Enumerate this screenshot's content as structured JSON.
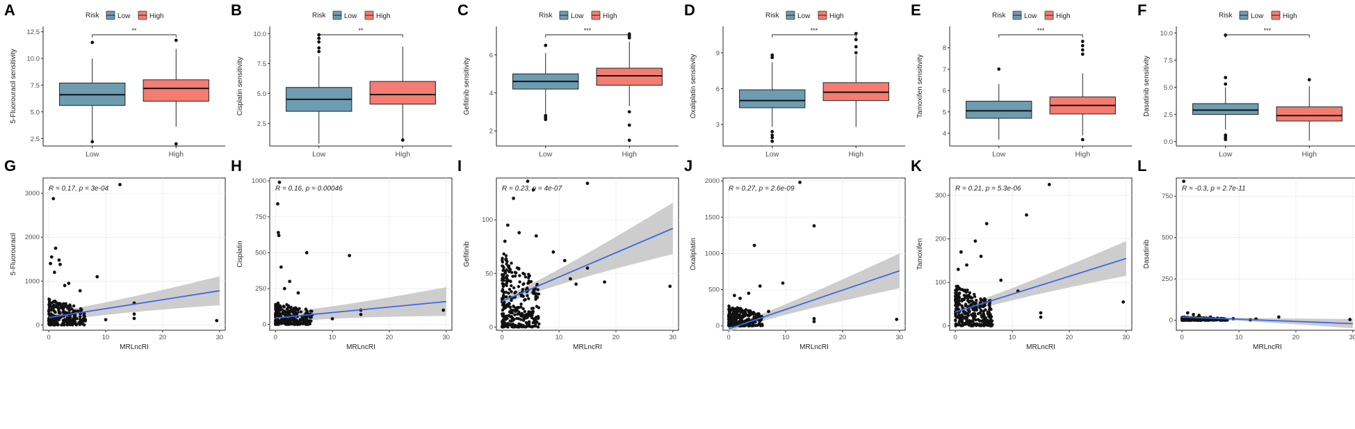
{
  "colors": {
    "low": "#6e9cb0",
    "high": "#f47c70",
    "fit": "#3b67e6",
    "ci": "#c4c4c4"
  },
  "chart_data": [
    {
      "type": "box",
      "letter": "A",
      "title": "",
      "ylabel": "5-Fluorouracil sensitivity",
      "xlabel": "",
      "categories": [
        "Low",
        "High"
      ],
      "legend_title": "Risk",
      "legend_labels": [
        "Low",
        "High"
      ],
      "sig": "**",
      "ylim": [
        1.8,
        13
      ],
      "yticks": [
        "2.5",
        "5.0",
        "7.5",
        "10.0",
        "12.5"
      ],
      "boxes": [
        {
          "name": "Low",
          "min": 2.3,
          "q1": 5.6,
          "median": 6.6,
          "q3": 7.7,
          "max": 10.0,
          "outliers": [
            2.2,
            11.5
          ]
        },
        {
          "name": "High",
          "min": 3.6,
          "q1": 6.0,
          "median": 7.2,
          "q3": 8.0,
          "max": 10.9,
          "outliers": [
            2.0,
            11.7
          ]
        }
      ]
    },
    {
      "type": "box",
      "letter": "B",
      "title": "",
      "ylabel": "Cisplatin sensitivity",
      "xlabel": "",
      "categories": [
        "Low",
        "High"
      ],
      "legend_title": "Risk",
      "legend_labels": [
        "Low",
        "High"
      ],
      "sig": "**",
      "ylim": [
        0.6,
        10.6
      ],
      "yticks": [
        "2.5",
        "5.0",
        "7.5",
        "10.0"
      ],
      "boxes": [
        {
          "name": "Low",
          "min": 0.8,
          "q1": 3.5,
          "median": 4.5,
          "q3": 5.5,
          "max": 8.1,
          "outliers": [
            8.5,
            8.8,
            9.3,
            9.6,
            9.9
          ]
        },
        {
          "name": "High",
          "min": 1.1,
          "q1": 4.1,
          "median": 4.9,
          "q3": 6.0,
          "max": 8.9,
          "outliers": [
            1.1
          ]
        }
      ]
    },
    {
      "type": "box",
      "letter": "C",
      "title": "",
      "ylabel": "Gefitinib sensitivity",
      "xlabel": "",
      "categories": [
        "Low",
        "High"
      ],
      "legend_title": "Risk",
      "legend_labels": [
        "Low",
        "High"
      ],
      "sig": "***",
      "ylim": [
        1.2,
        7.5
      ],
      "yticks": [
        "2",
        "4",
        "6"
      ],
      "boxes": [
        {
          "name": "Low",
          "min": 2.9,
          "q1": 4.2,
          "median": 4.6,
          "q3": 5.0,
          "max": 6.1,
          "outliers": [
            2.6,
            2.7,
            2.8,
            6.5
          ]
        },
        {
          "name": "High",
          "min": 3.3,
          "q1": 4.4,
          "median": 4.9,
          "q3": 5.3,
          "max": 6.7,
          "outliers": [
            1.5,
            2.3,
            3.0,
            6.9,
            7.0,
            7.1
          ]
        }
      ]
    },
    {
      "type": "box",
      "letter": "D",
      "title": "",
      "ylabel": "Oxaliplatin sensitivity",
      "xlabel": "",
      "categories": [
        "Low",
        "High"
      ],
      "legend_title": "Risk",
      "legend_labels": [
        "Low",
        "High"
      ],
      "sig": "***",
      "ylim": [
        1.2,
        11.2
      ],
      "yticks": [
        "3",
        "6",
        "9"
      ],
      "boxes": [
        {
          "name": "Low",
          "min": 2.8,
          "q1": 4.4,
          "median": 5.0,
          "q3": 5.9,
          "max": 8.2,
          "outliers": [
            1.6,
            1.9,
            2.1,
            2.4,
            8.6,
            8.8
          ]
        },
        {
          "name": "High",
          "min": 2.8,
          "q1": 5.0,
          "median": 5.7,
          "q3": 6.5,
          "max": 8.8,
          "outliers": [
            9.0,
            9.5,
            10.1,
            10.6
          ]
        }
      ]
    },
    {
      "type": "box",
      "letter": "E",
      "title": "",
      "ylabel": "Tamoxifen sensitivity",
      "xlabel": "",
      "categories": [
        "Low",
        "High"
      ],
      "legend_title": "Risk",
      "legend_labels": [
        "Low",
        "High"
      ],
      "sig": "***",
      "ylim": [
        3.4,
        9.0
      ],
      "yticks": [
        "4",
        "5",
        "6",
        "7",
        "8"
      ],
      "boxes": [
        {
          "name": "Low",
          "min": 3.7,
          "q1": 4.7,
          "median": 5.05,
          "q3": 5.5,
          "max": 6.3,
          "outliers": [
            7.0
          ]
        },
        {
          "name": "High",
          "min": 3.9,
          "q1": 4.9,
          "median": 5.3,
          "q3": 5.7,
          "max": 6.8,
          "outliers": [
            3.7,
            7.7,
            7.9,
            8.1,
            8.3
          ]
        }
      ]
    },
    {
      "type": "box",
      "letter": "F",
      "title": "",
      "ylabel": "Dasatinib sensitivity",
      "xlabel": "",
      "categories": [
        "Low",
        "High"
      ],
      "legend_title": "Risk",
      "legend_labels": [
        "Low",
        "High"
      ],
      "sig": "***",
      "ylim": [
        -0.4,
        10.6
      ],
      "yticks": [
        "0.0",
        "2.5",
        "5.0",
        "7.5",
        "10.0"
      ],
      "boxes": [
        {
          "name": "Low",
          "min": 1.1,
          "q1": 2.5,
          "median": 2.9,
          "q3": 3.5,
          "max": 5.0,
          "outliers": [
            0.2,
            0.4,
            0.6,
            5.3,
            5.9,
            9.8
          ]
        },
        {
          "name": "High",
          "min": 0.1,
          "q1": 1.9,
          "median": 2.4,
          "q3": 3.2,
          "max": 5.1,
          "outliers": [
            5.7
          ]
        }
      ]
    },
    {
      "type": "scatter",
      "letter": "G",
      "title": "",
      "ylabel": "5-Fluorouracil",
      "xlabel": "MRLncRI",
      "stat": "R = 0.17, p = 3e-04",
      "xlim": [
        -1,
        31
      ],
      "ylim": [
        -120,
        3350
      ],
      "xticks": [
        "0",
        "10",
        "20",
        "30"
      ],
      "yticks": [
        "0",
        "1000",
        "2000",
        "3000"
      ],
      "ytick_values": [
        0,
        1000,
        2000,
        3000
      ],
      "bulk": {
        "xmax": 6.5,
        "ymax": 600,
        "count": 260
      },
      "points": [
        [
          12.5,
          3200
        ],
        [
          0.8,
          2880
        ],
        [
          1.2,
          1750
        ],
        [
          0.5,
          1550
        ],
        [
          1.8,
          1480
        ],
        [
          0.3,
          1400
        ],
        [
          2.0,
          1380
        ],
        [
          1.0,
          1200
        ],
        [
          3.5,
          950
        ],
        [
          2.8,
          900
        ],
        [
          8.5,
          1100
        ],
        [
          10,
          120
        ],
        [
          15,
          500
        ],
        [
          15,
          250
        ],
        [
          15,
          150
        ],
        [
          29.5,
          100
        ],
        [
          5.5,
          780
        ]
      ],
      "fit": {
        "x0": 0,
        "y0": 170,
        "x1": 30,
        "y1": 780,
        "ci0": 130,
        "ci1": 330
      }
    },
    {
      "type": "scatter",
      "letter": "H",
      "title": "",
      "ylabel": "Cisplatin",
      "xlabel": "MRLncRI",
      "stat": "R = 0.16, p = 0.00046",
      "xlim": [
        -1,
        31
      ],
      "ylim": [
        -40,
        1020
      ],
      "xticks": [
        "0",
        "10",
        "20",
        "30"
      ],
      "yticks": [
        "0",
        "250",
        "500",
        "750",
        "1000"
      ],
      "ytick_values": [
        0,
        250,
        500,
        750,
        1000
      ],
      "bulk": {
        "xmax": 6.5,
        "ymax": 160,
        "count": 260
      },
      "points": [
        [
          0.7,
          990
        ],
        [
          0.4,
          840
        ],
        [
          0.5,
          640
        ],
        [
          0.6,
          620
        ],
        [
          5.5,
          500
        ],
        [
          13,
          480
        ],
        [
          1.0,
          400
        ],
        [
          2.5,
          300
        ],
        [
          1.6,
          250
        ],
        [
          4.0,
          220
        ],
        [
          15,
          100
        ],
        [
          15,
          70
        ],
        [
          29.5,
          100
        ],
        [
          10,
          40
        ]
      ],
      "fit": {
        "x0": 0,
        "y0": 45,
        "x1": 30,
        "y1": 160,
        "ci0": 40,
        "ci1": 100
      }
    },
    {
      "type": "scatter",
      "letter": "I",
      "title": "",
      "ylabel": "Gefitinib",
      "xlabel": "MRLncRI",
      "stat": "R = 0.23, p = 4e-07",
      "xlim": [
        -1,
        31
      ],
      "ylim": [
        -3,
        139
      ],
      "xticks": [
        "0",
        "10",
        "20",
        "30"
      ],
      "yticks": [
        "0",
        "50",
        "100"
      ],
      "ytick_values": [
        0,
        50,
        100
      ],
      "bulk": {
        "xmax": 6.5,
        "ymax": 70,
        "count": 320
      },
      "points": [
        [
          4.5,
          136
        ],
        [
          15,
          134
        ],
        [
          5.5,
          128
        ],
        [
          2.0,
          120
        ],
        [
          1.0,
          95
        ],
        [
          3.0,
          88
        ],
        [
          9.0,
          70
        ],
        [
          11,
          62
        ],
        [
          15,
          55
        ],
        [
          12,
          45
        ],
        [
          13,
          40
        ],
        [
          18,
          42
        ],
        [
          29.5,
          38
        ],
        [
          0.5,
          80
        ],
        [
          6.0,
          85
        ]
      ],
      "fit": {
        "x0": 0,
        "y0": 24,
        "x1": 30,
        "y1": 92,
        "ci0": 4,
        "ci1": 24
      }
    },
    {
      "type": "scatter",
      "letter": "J",
      "title": "",
      "ylabel": "Oxaliplatin",
      "xlabel": "MRLncRI",
      "stat": "R = 0.27, p = 2.6e-09",
      "xlim": [
        -1,
        31
      ],
      "ylim": [
        -60,
        2040
      ],
      "xticks": [
        "0",
        "10",
        "20",
        "30"
      ],
      "yticks": [
        "0",
        "500",
        "1000",
        "1500",
        "2000"
      ],
      "ytick_values": [
        0,
        500,
        1000,
        1500,
        2000
      ],
      "bulk": {
        "xmax": 6.0,
        "ymax": 280,
        "count": 260
      },
      "points": [
        [
          12.5,
          1980
        ],
        [
          15,
          1380
        ],
        [
          4.5,
          1110
        ],
        [
          5.5,
          550
        ],
        [
          3.5,
          450
        ],
        [
          9.5,
          590
        ],
        [
          1.0,
          420
        ],
        [
          2.0,
          380
        ],
        [
          15,
          100
        ],
        [
          15,
          60
        ],
        [
          29.5,
          90
        ],
        [
          7.0,
          200
        ]
      ],
      "fit": {
        "x0": 0,
        "y0": -40,
        "x1": 30,
        "y1": 760,
        "ci0": 40,
        "ci1": 240
      }
    },
    {
      "type": "scatter",
      "letter": "K",
      "title": "",
      "ylabel": "Tamoxifen",
      "xlabel": "MRLncRI",
      "stat": "R = 0.21, p = 5.3e-06",
      "xlim": [
        -1,
        31
      ],
      "ylim": [
        -10,
        340
      ],
      "xticks": [
        "0",
        "10",
        "20",
        "30"
      ],
      "yticks": [
        "0",
        "100",
        "200",
        "300"
      ],
      "ytick_values": [
        0,
        100,
        200,
        300
      ],
      "bulk": {
        "xmax": 6.5,
        "ymax": 95,
        "count": 300
      },
      "points": [
        [
          16.5,
          325
        ],
        [
          12.5,
          255
        ],
        [
          5.5,
          235
        ],
        [
          3.5,
          195
        ],
        [
          1.0,
          170
        ],
        [
          2.0,
          140
        ],
        [
          0.5,
          130
        ],
        [
          8.0,
          105
        ],
        [
          11,
          80
        ],
        [
          15,
          30
        ],
        [
          15,
          20
        ],
        [
          29.5,
          55
        ],
        [
          4.5,
          160
        ]
      ],
      "fit": {
        "x0": 0,
        "y0": 32,
        "x1": 30,
        "y1": 155,
        "ci0": 10,
        "ci1": 40
      }
    },
    {
      "type": "scatter",
      "letter": "L",
      "title": "",
      "ylabel": "Dasatinib",
      "xlabel": "MRLncRI",
      "stat": "R = -0.3, p = 2.7e-11",
      "xlim": [
        -1,
        31
      ],
      "ylim": [
        -60,
        860
      ],
      "xticks": [
        "0",
        "10",
        "20",
        "30"
      ],
      "yticks": [
        "0",
        "250",
        "500",
        "750"
      ],
      "ytick_values": [
        0,
        250,
        500,
        750
      ],
      "bulk": {
        "xmax": 8.0,
        "ymax": 20,
        "count": 260
      },
      "points": [
        [
          0.3,
          840
        ],
        [
          1.0,
          45
        ],
        [
          2.0,
          35
        ],
        [
          3.0,
          30
        ],
        [
          5.0,
          20
        ],
        [
          9.0,
          10
        ],
        [
          13,
          8
        ],
        [
          17,
          20
        ],
        [
          29.5,
          5
        ],
        [
          12,
          3
        ],
        [
          7.5,
          6
        ]
      ],
      "fit": {
        "x0": 0,
        "y0": 20,
        "x1": 30,
        "y1": -20,
        "ci0": 6,
        "ci1": 28
      }
    }
  ]
}
